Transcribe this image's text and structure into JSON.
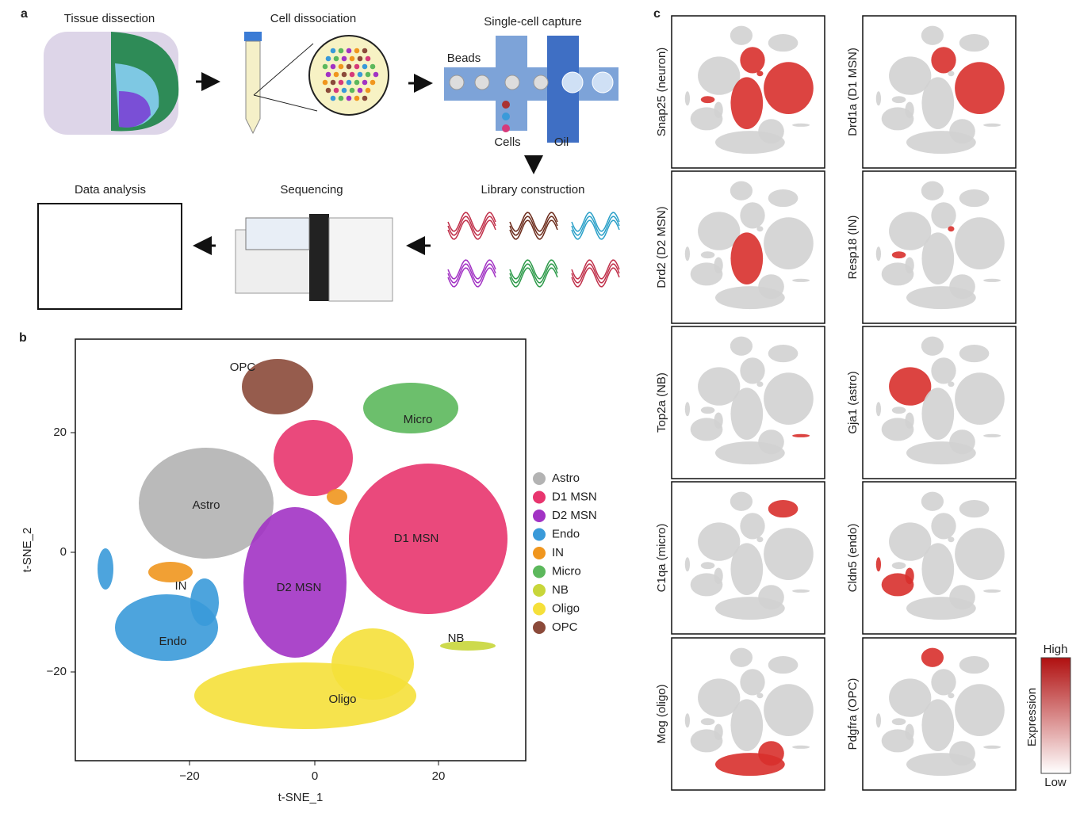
{
  "panel_a": {
    "label": "a",
    "steps": [
      "Tissue dissection",
      "Cell dissociation",
      "Single-cell capture",
      "Library construction",
      "Sequencing",
      "Data analysis"
    ],
    "capture_labels": [
      "Beads",
      "Cells",
      "Oil"
    ]
  },
  "panel_b": {
    "label": "b",
    "x_label": "t-SNE_1",
    "y_label": "t-SNE_2",
    "xticks": [
      "−20",
      "0",
      "20"
    ],
    "yticks": [
      "20",
      "0",
      "−20"
    ],
    "clusters": [
      {
        "label": "Astro",
        "color": "#b3b3b3"
      },
      {
        "label": "D1 MSN",
        "color": "#e8356e"
      },
      {
        "label": "D2 MSN",
        "color": "#a233c4"
      },
      {
        "label": "Endo",
        "color": "#3a9ad9"
      },
      {
        "label": "IN",
        "color": "#f0961e"
      },
      {
        "label": "Micro",
        "color": "#5cb85c"
      },
      {
        "label": "NB",
        "color": "#c8d63a"
      },
      {
        "label": "Oligo",
        "color": "#f5e03a"
      },
      {
        "label": "OPC",
        "color": "#8b4a3a"
      }
    ]
  },
  "panel_c": {
    "label": "c",
    "genes": [
      "Snap25 (neuron)",
      "Drd1a (D1 MSN)",
      "Drd2 (D2 MSN)",
      "Resp18 (IN)",
      "Top2a (NB)",
      "Gja1 (astro)",
      "C1qa (micro)",
      "Cldn5 (endo)",
      "Mog (oligo)",
      "Pdgfra (OPC)"
    ],
    "colorbar": {
      "title": "Expression",
      "high": "High",
      "low": "Low"
    }
  }
}
